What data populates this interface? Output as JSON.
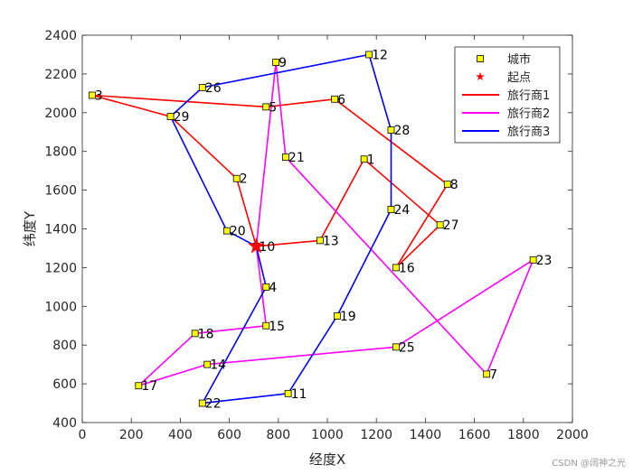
{
  "chart_data": {
    "type": "line",
    "xlabel": "经度X",
    "ylabel": "纬度Y",
    "xlim": [
      0,
      2000
    ],
    "ylim": [
      400,
      2400
    ],
    "xticks": [
      0,
      200,
      400,
      600,
      800,
      1000,
      1200,
      1400,
      1600,
      1800,
      2000
    ],
    "yticks": [
      400,
      600,
      800,
      1000,
      1200,
      1400,
      1600,
      1800,
      2000,
      2200,
      2400
    ],
    "grid": false,
    "legend_position": "top-right",
    "legend": [
      {
        "label": "城市",
        "kind": "square-marker",
        "color": "#ffff00"
      },
      {
        "label": "起点",
        "kind": "star-marker",
        "color": "#ff0000"
      },
      {
        "label": "旅行商1",
        "kind": "line",
        "color": "#ff0000"
      },
      {
        "label": "旅行商2",
        "kind": "line",
        "color": "#ff00ff"
      },
      {
        "label": "旅行商3",
        "kind": "line",
        "color": "#0000ff"
      }
    ],
    "start": {
      "label": "10",
      "x": 710,
      "y": 1310
    },
    "cities": [
      {
        "label": "1",
        "x": 1150,
        "y": 1760
      },
      {
        "label": "2",
        "x": 630,
        "y": 1660
      },
      {
        "label": "3",
        "x": 40,
        "y": 2090
      },
      {
        "label": "4",
        "x": 750,
        "y": 1100
      },
      {
        "label": "5",
        "x": 750,
        "y": 2030
      },
      {
        "label": "6",
        "x": 1030,
        "y": 2070
      },
      {
        "label": "7",
        "x": 1650,
        "y": 650
      },
      {
        "label": "8",
        "x": 1490,
        "y": 1630
      },
      {
        "label": "9",
        "x": 790,
        "y": 2260
      },
      {
        "label": "10",
        "x": 710,
        "y": 1310
      },
      {
        "label": "11",
        "x": 840,
        "y": 550
      },
      {
        "label": "12",
        "x": 1170,
        "y": 2300
      },
      {
        "label": "13",
        "x": 970,
        "y": 1340
      },
      {
        "label": "14",
        "x": 510,
        "y": 700
      },
      {
        "label": "15",
        "x": 750,
        "y": 900
      },
      {
        "label": "16",
        "x": 1280,
        "y": 1200
      },
      {
        "label": "17",
        "x": 230,
        "y": 590
      },
      {
        "label": "18",
        "x": 460,
        "y": 860
      },
      {
        "label": "19",
        "x": 1040,
        "y": 950
      },
      {
        "label": "20",
        "x": 590,
        "y": 1390
      },
      {
        "label": "21",
        "x": 830,
        "y": 1770
      },
      {
        "label": "22",
        "x": 490,
        "y": 500
      },
      {
        "label": "23",
        "x": 1840,
        "y": 1240
      },
      {
        "label": "24",
        "x": 1260,
        "y": 1500
      },
      {
        "label": "25",
        "x": 1280,
        "y": 790
      },
      {
        "label": "26",
        "x": 490,
        "y": 2130
      },
      {
        "label": "27",
        "x": 1460,
        "y": 1420
      },
      {
        "label": "28",
        "x": 1260,
        "y": 1910
      },
      {
        "label": "29",
        "x": 360,
        "y": 1980
      }
    ],
    "series": [
      {
        "name": "旅行商1",
        "color": "#ff0000",
        "route": [
          "10",
          "2",
          "29",
          "3",
          "5",
          "6",
          "8",
          "16",
          "27",
          "1",
          "13",
          "10"
        ]
      },
      {
        "name": "旅行商2",
        "color": "#ff00ff",
        "route": [
          "10",
          "9",
          "21",
          "7",
          "23",
          "25",
          "14",
          "17",
          "18",
          "15",
          "10"
        ]
      },
      {
        "name": "旅行商3",
        "color": "#0000ff",
        "route": [
          "10",
          "4",
          "22",
          "11",
          "19",
          "24",
          "28",
          "12",
          "26",
          "29",
          "20",
          "10"
        ]
      }
    ]
  },
  "watermark": "CSDN @阔神之光"
}
